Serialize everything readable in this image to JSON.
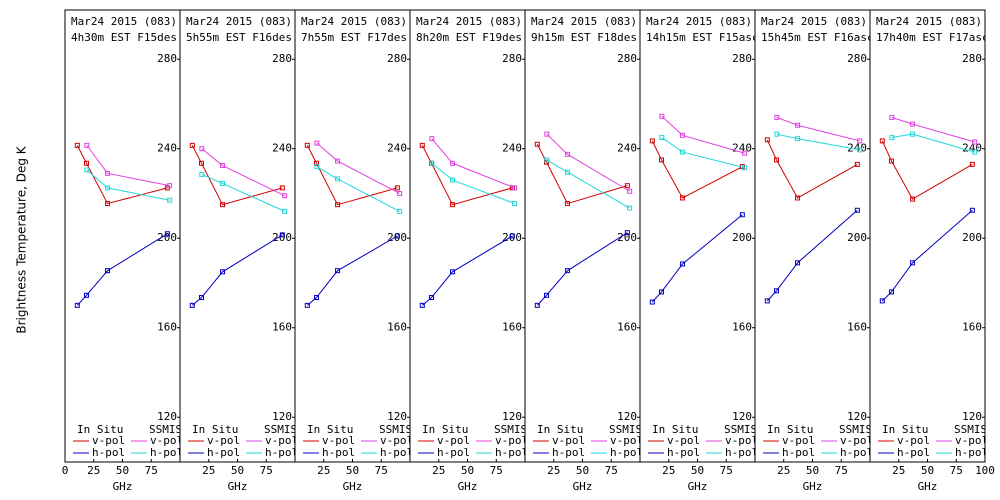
{
  "chart_data": [
    {
      "type": "line",
      "title": "Mar24 2015 (083)",
      "subtitle": "4h30m EST F15des",
      "ylabel": "Brightness Temperature, Deg K",
      "xlabel": "GHz",
      "xlim": [
        0,
        100
      ],
      "xticks": [
        0,
        25,
        50,
        75
      ],
      "ylim": [
        100,
        302
      ],
      "yticks": [
        120,
        160,
        200,
        240,
        280
      ],
      "legend_titles": [
        "In Situ",
        "SSMIS"
      ],
      "series": [
        {
          "name": "v-pol",
          "color": "#d00000",
          "x": [
            10.7,
            18.7,
            37,
            89
          ],
          "values": [
            241.5,
            233.5,
            215.5,
            222.5
          ]
        },
        {
          "name": "h-pol",
          "color": "#0000c0",
          "x": [
            10.7,
            18.7,
            37,
            89
          ],
          "values": [
            170,
            174.5,
            185.5,
            202
          ]
        },
        {
          "name": "v-pol",
          "color": "#e040e0",
          "x": [
            19,
            37,
            91
          ],
          "values": [
            241.5,
            229,
            223.5
          ]
        },
        {
          "name": "h-pol",
          "color": "#20d8d8",
          "x": [
            19,
            37,
            91
          ],
          "values": [
            230.5,
            222.5,
            217
          ]
        }
      ]
    },
    {
      "type": "line",
      "title": "Mar24 2015 (083)",
      "subtitle": "5h55m EST F16des",
      "xlabel": "GHz",
      "xlim": [
        0,
        100
      ],
      "xticks": [
        25,
        50,
        75
      ],
      "ylim": [
        100,
        302
      ],
      "yticks": [
        120,
        160,
        200,
        240,
        280
      ],
      "legend_titles": [
        "In Situ",
        "SSMIS"
      ],
      "series": [
        {
          "name": "v-pol",
          "color": "#d00000",
          "x": [
            10.7,
            18.7,
            37,
            89
          ],
          "values": [
            241.5,
            233.5,
            215,
            222.5
          ]
        },
        {
          "name": "h-pol",
          "color": "#0000c0",
          "x": [
            10.7,
            18.7,
            37,
            89
          ],
          "values": [
            170,
            173.5,
            185,
            201.5
          ]
        },
        {
          "name": "v-pol",
          "color": "#e040e0",
          "x": [
            19,
            37,
            91
          ],
          "values": [
            240,
            232.5,
            219
          ]
        },
        {
          "name": "h-pol",
          "color": "#20d8d8",
          "x": [
            19,
            37,
            91
          ],
          "values": [
            228.5,
            224.5,
            212
          ]
        }
      ]
    },
    {
      "type": "line",
      "title": "Mar24 2015 (083)",
      "subtitle": "7h55m EST F17des",
      "xlabel": "GHz",
      "xlim": [
        0,
        100
      ],
      "xticks": [
        25,
        50,
        75
      ],
      "ylim": [
        100,
        302
      ],
      "yticks": [
        120,
        160,
        200,
        240,
        280
      ],
      "legend_titles": [
        "In Situ",
        "SSMIS"
      ],
      "series": [
        {
          "name": "v-pol",
          "color": "#d00000",
          "x": [
            10.7,
            18.7,
            37,
            89
          ],
          "values": [
            241.5,
            233.5,
            215,
            222.5
          ]
        },
        {
          "name": "h-pol",
          "color": "#0000c0",
          "x": [
            10.7,
            18.7,
            37,
            89
          ],
          "values": [
            170,
            173.5,
            185.5,
            201
          ]
        },
        {
          "name": "v-pol",
          "color": "#e040e0",
          "x": [
            19,
            37,
            91
          ],
          "values": [
            242.5,
            234.5,
            220
          ]
        },
        {
          "name": "h-pol",
          "color": "#20d8d8",
          "x": [
            19,
            37,
            91
          ],
          "values": [
            232,
            226.5,
            212
          ]
        }
      ]
    },
    {
      "type": "line",
      "title": "Mar24 2015 (083)",
      "subtitle": "8h20m EST F19des",
      "xlabel": "GHz",
      "xlim": [
        0,
        100
      ],
      "xticks": [
        25,
        50,
        75
      ],
      "ylim": [
        100,
        302
      ],
      "yticks": [
        120,
        160,
        200,
        240,
        280
      ],
      "legend_titles": [
        "In Situ",
        "SSMIS"
      ],
      "series": [
        {
          "name": "v-pol",
          "color": "#d00000",
          "x": [
            10.7,
            18.7,
            37,
            89
          ],
          "values": [
            241.5,
            233.5,
            215,
            222.5
          ]
        },
        {
          "name": "h-pol",
          "color": "#0000c0",
          "x": [
            10.7,
            18.7,
            37,
            89
          ],
          "values": [
            170,
            173.5,
            185,
            201
          ]
        },
        {
          "name": "v-pol",
          "color": "#e040e0",
          "x": [
            19,
            37,
            91
          ],
          "values": [
            244.5,
            233.5,
            222.5
          ]
        },
        {
          "name": "h-pol",
          "color": "#20d8d8",
          "x": [
            19,
            37,
            91
          ],
          "values": [
            233.5,
            226,
            215.5
          ]
        }
      ]
    },
    {
      "type": "line",
      "title": "Mar24 2015 (083)",
      "subtitle": "9h15m EST F18des",
      "xlabel": "GHz",
      "xlim": [
        0,
        100
      ],
      "xticks": [
        25,
        50,
        75
      ],
      "ylim": [
        100,
        302
      ],
      "yticks": [
        120,
        160,
        200,
        240,
        280
      ],
      "legend_titles": [
        "In Situ",
        "SSMIS"
      ],
      "series": [
        {
          "name": "v-pol",
          "color": "#d00000",
          "x": [
            10.7,
            18.7,
            37,
            89
          ],
          "values": [
            242,
            234,
            215.5,
            223.5
          ]
        },
        {
          "name": "h-pol",
          "color": "#0000c0",
          "x": [
            10.7,
            18.7,
            37,
            89
          ],
          "values": [
            170,
            174.5,
            185.5,
            202.5
          ]
        },
        {
          "name": "v-pol",
          "color": "#e040e0",
          "x": [
            19,
            37,
            91
          ],
          "values": [
            246.5,
            237.5,
            221
          ]
        },
        {
          "name": "h-pol",
          "color": "#20d8d8",
          "x": [
            19,
            37,
            91
          ],
          "values": [
            235,
            229.5,
            213.5
          ]
        }
      ]
    },
    {
      "type": "line",
      "title": "Mar24 2015 (083)",
      "subtitle": "14h15m EST F15asc",
      "xlabel": "GHz",
      "xlim": [
        0,
        100
      ],
      "xticks": [
        25,
        50,
        75
      ],
      "ylim": [
        100,
        302
      ],
      "yticks": [
        120,
        160,
        200,
        240,
        280
      ],
      "legend_titles": [
        "In Situ",
        "SSMIS"
      ],
      "series": [
        {
          "name": "v-pol",
          "color": "#d00000",
          "x": [
            10.7,
            18.7,
            37,
            89
          ],
          "values": [
            243.5,
            235,
            218,
            232
          ]
        },
        {
          "name": "h-pol",
          "color": "#0000c0",
          "x": [
            10.7,
            18.7,
            37,
            89
          ],
          "values": [
            171.5,
            176,
            188.5,
            210.5
          ]
        },
        {
          "name": "v-pol",
          "color": "#e040e0",
          "x": [
            19,
            37,
            91
          ],
          "values": [
            254.5,
            246,
            238
          ]
        },
        {
          "name": "h-pol",
          "color": "#20d8d8",
          "x": [
            19,
            37,
            91
          ],
          "values": [
            245,
            238.5,
            231.5
          ]
        }
      ]
    },
    {
      "type": "line",
      "title": "Mar24 2015 (083)",
      "subtitle": "15h45m EST F16asc",
      "xlabel": "GHz",
      "xlim": [
        0,
        100
      ],
      "xticks": [
        25,
        50,
        75
      ],
      "ylim": [
        100,
        302
      ],
      "yticks": [
        120,
        160,
        200,
        240,
        280
      ],
      "legend_titles": [
        "In Situ",
        "SSMIS"
      ],
      "series": [
        {
          "name": "v-pol",
          "color": "#d00000",
          "x": [
            10.7,
            18.7,
            37,
            89
          ],
          "values": [
            244,
            235,
            218,
            233
          ]
        },
        {
          "name": "h-pol",
          "color": "#0000c0",
          "x": [
            10.7,
            18.7,
            37,
            89
          ],
          "values": [
            172,
            176.5,
            189,
            212.5
          ]
        },
        {
          "name": "v-pol",
          "color": "#e040e0",
          "x": [
            19,
            37,
            91
          ],
          "values": [
            254,
            250.5,
            243.5
          ]
        },
        {
          "name": "h-pol",
          "color": "#20d8d8",
          "x": [
            19,
            37,
            91
          ],
          "values": [
            246.5,
            244.5,
            239.5
          ]
        }
      ]
    },
    {
      "type": "line",
      "title": "Mar24 2015 (083)",
      "subtitle": "17h40m EST F17asc",
      "xlabel": "GHz",
      "xlim": [
        0,
        100
      ],
      "xticks": [
        25,
        50,
        75,
        100
      ],
      "ylim": [
        100,
        302
      ],
      "yticks": [
        120,
        160,
        200,
        240,
        280
      ],
      "legend_titles": [
        "In Situ",
        "SSMIS"
      ],
      "series": [
        {
          "name": "v-pol",
          "color": "#d00000",
          "x": [
            10.7,
            18.7,
            37,
            89
          ],
          "values": [
            243.5,
            234.5,
            217.5,
            233
          ]
        },
        {
          "name": "h-pol",
          "color": "#0000c0",
          "x": [
            10.7,
            18.7,
            37,
            89
          ],
          "values": [
            172,
            176,
            189,
            212.5
          ]
        },
        {
          "name": "v-pol",
          "color": "#e040e0",
          "x": [
            19,
            37,
            91
          ],
          "values": [
            254,
            251,
            243
          ]
        },
        {
          "name": "h-pol",
          "color": "#20d8d8",
          "x": [
            19,
            37,
            91
          ],
          "values": [
            245,
            246.5,
            238.5
          ]
        }
      ]
    }
  ]
}
